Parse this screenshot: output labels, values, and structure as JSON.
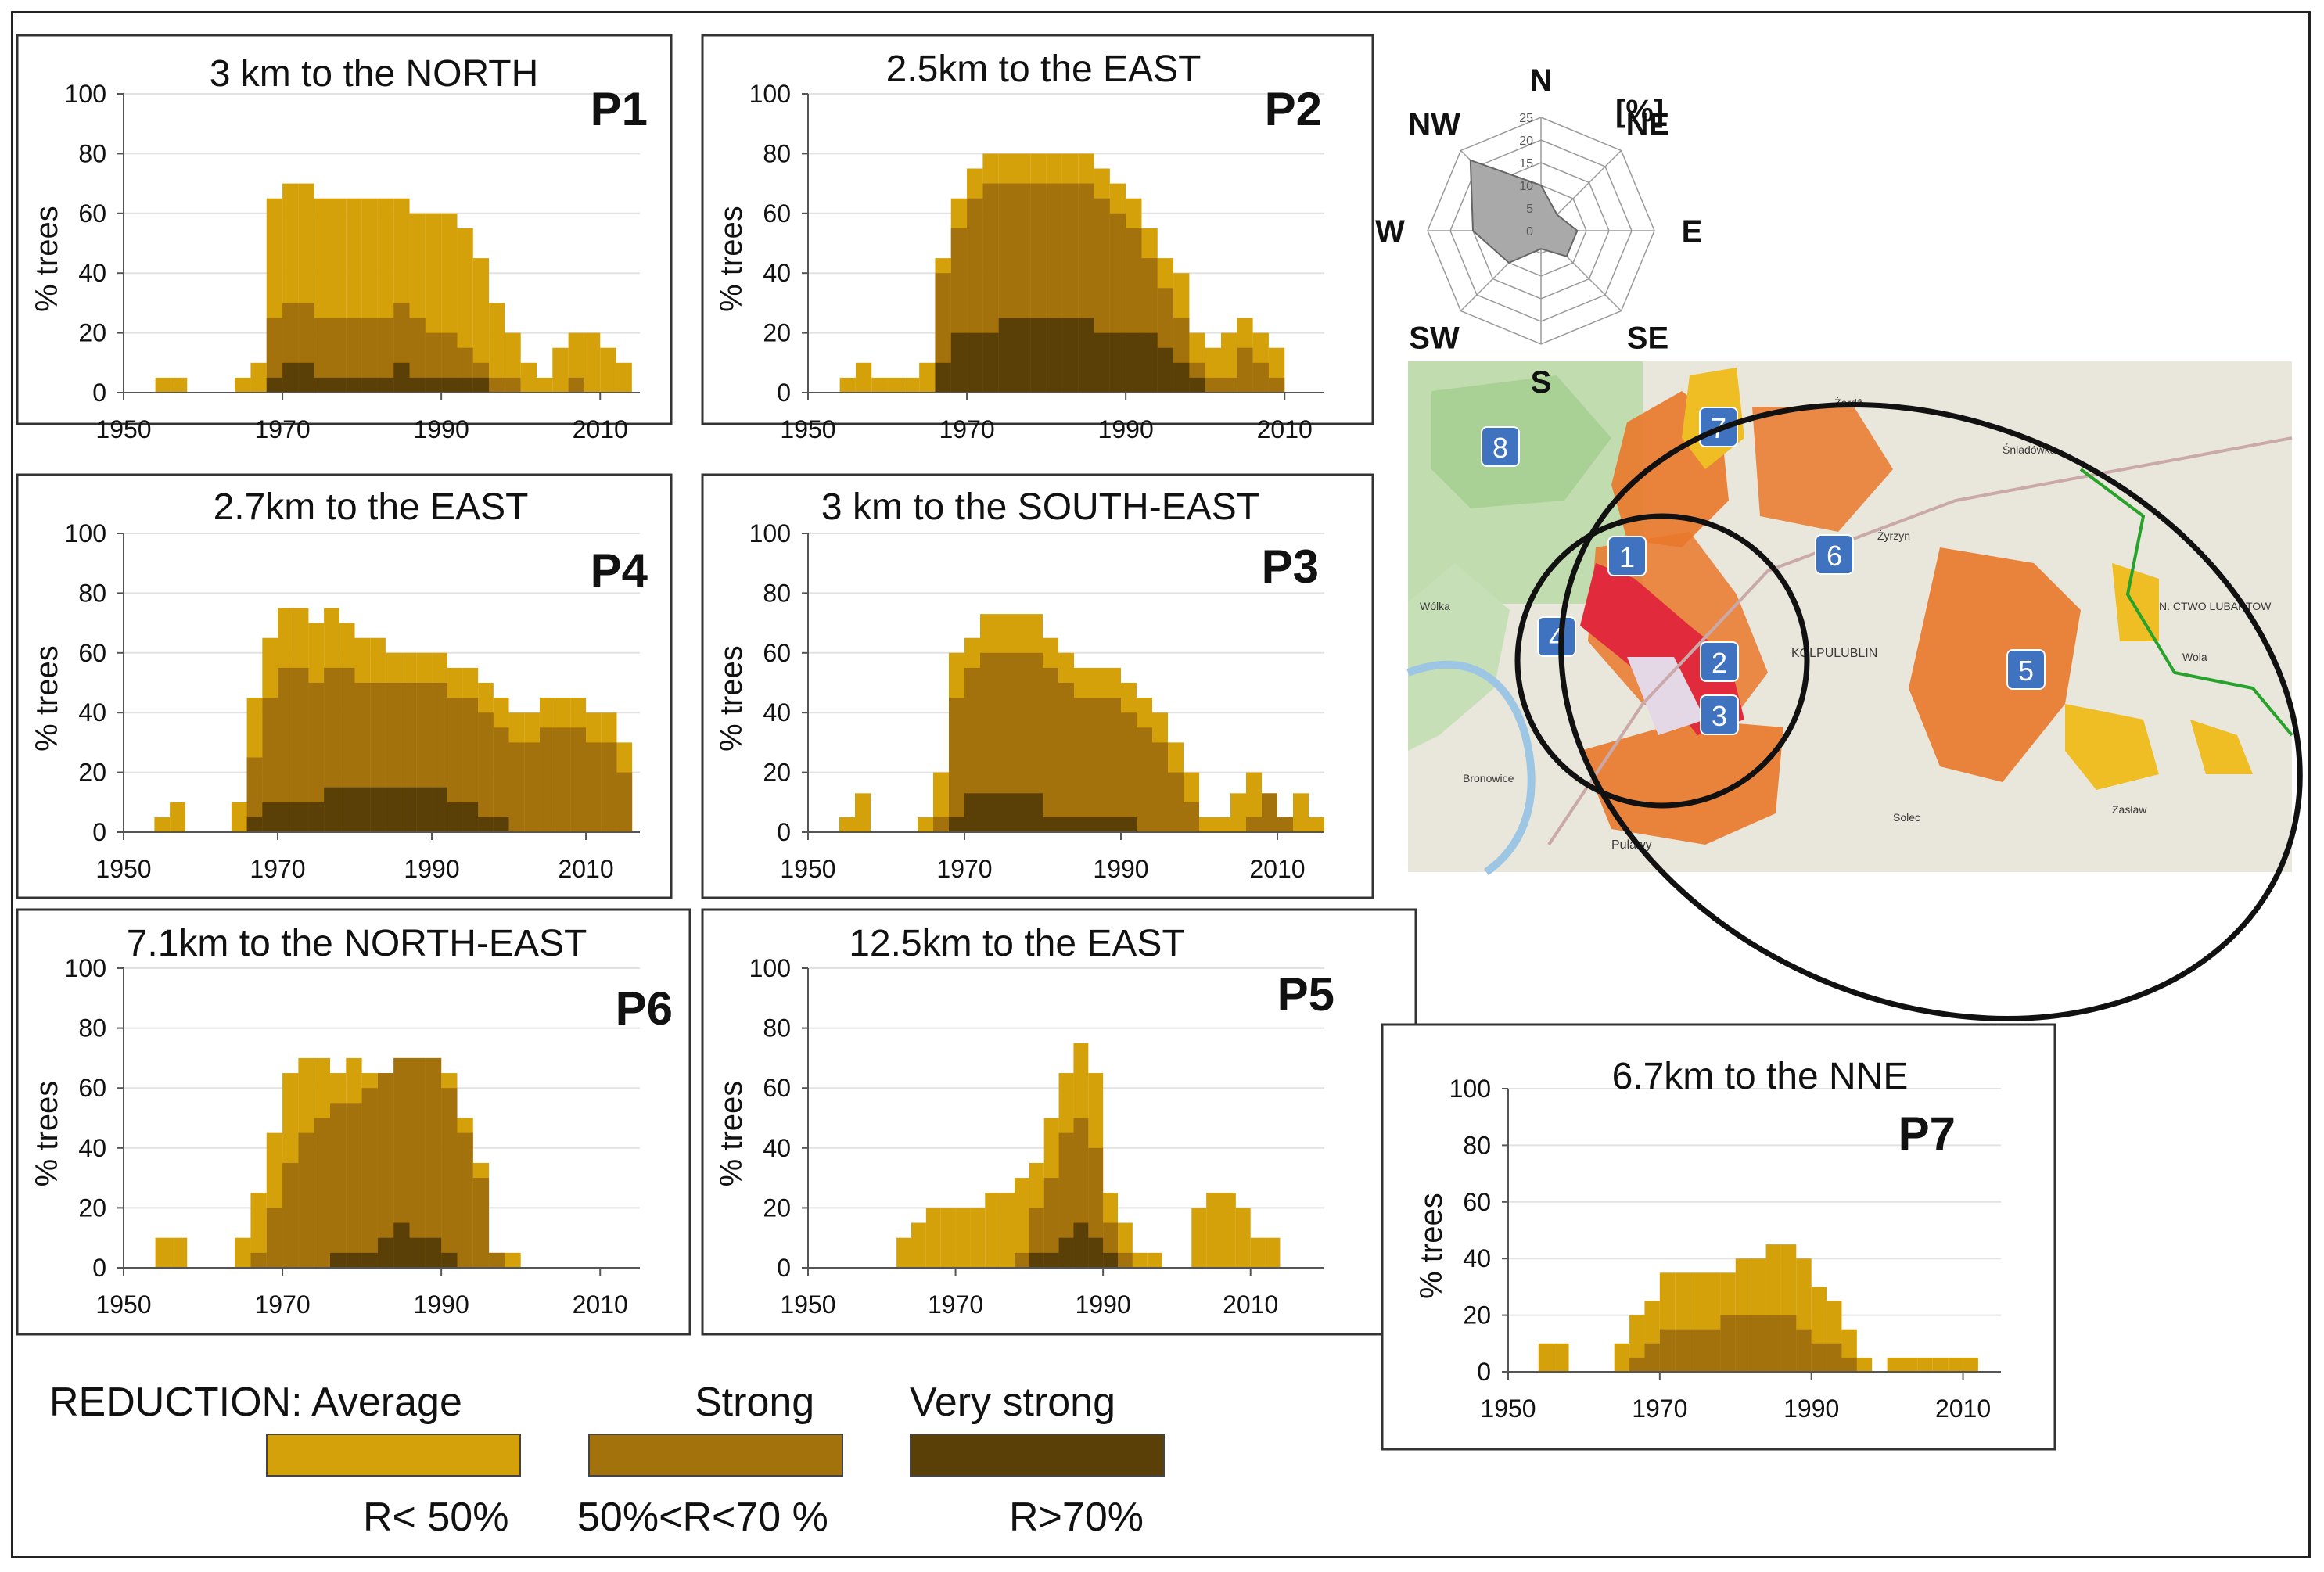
{
  "colors": {
    "average": "#d4a10a",
    "strong": "#a3720c",
    "very_strong": "#5a3f06",
    "map_land": "#e9e6db",
    "map_forest": "#b7d8a6",
    "map_orange": "#e9782a",
    "map_yellow": "#efbd24",
    "map_red": "#e12a3b",
    "map_label": "#3f73c0"
  },
  "y_axis_label": "% trees",
  "chart_data": [
    {
      "id": "P1",
      "type": "bar",
      "title": "3 km to the NORTH",
      "panel_label": "P1",
      "xlabel": "",
      "ylabel": "% trees",
      "xlim": [
        1950,
        2015
      ],
      "ylim": [
        0,
        100
      ],
      "xticks": [
        1950,
        1970,
        1990,
        2010
      ],
      "yticks": [
        0,
        20,
        40,
        60,
        80,
        100
      ],
      "bin_width": 2,
      "bins": [
        1954,
        1956,
        1962,
        1964,
        1966,
        1968,
        1970,
        1972,
        1974,
        1976,
        1978,
        1980,
        1982,
        1984,
        1986,
        1988,
        1990,
        1992,
        1994,
        1996,
        1998,
        2000,
        2002,
        2004,
        2006,
        2008,
        2010,
        2012
      ],
      "series": [
        {
          "name": "Average",
          "values": [
            5,
            5,
            0,
            5,
            10,
            65,
            70,
            70,
            65,
            65,
            65,
            65,
            65,
            65,
            60,
            60,
            60,
            55,
            45,
            30,
            20,
            10,
            5,
            15,
            20,
            20,
            15,
            10
          ]
        },
        {
          "name": "Strong",
          "values": [
            0,
            0,
            0,
            0,
            0,
            25,
            30,
            30,
            25,
            25,
            25,
            25,
            25,
            30,
            25,
            20,
            20,
            15,
            10,
            5,
            5,
            0,
            0,
            0,
            5,
            0,
            0,
            0
          ]
        },
        {
          "name": "Very strong",
          "values": [
            0,
            0,
            0,
            0,
            0,
            5,
            10,
            10,
            5,
            5,
            5,
            5,
            5,
            10,
            5,
            5,
            5,
            5,
            5,
            0,
            0,
            0,
            0,
            0,
            0,
            0,
            0,
            0
          ]
        }
      ]
    },
    {
      "id": "P2",
      "type": "bar",
      "title": "2.5km to the EAST",
      "panel_label": "P2",
      "xlabel": "",
      "ylabel": "% trees",
      "xlim": [
        1950,
        2015
      ],
      "ylim": [
        0,
        100
      ],
      "xticks": [
        1950,
        1970,
        1990,
        2010
      ],
      "yticks": [
        0,
        20,
        40,
        60,
        80,
        100
      ],
      "bin_width": 2,
      "bins": [
        1954,
        1956,
        1958,
        1960,
        1962,
        1964,
        1966,
        1968,
        1970,
        1972,
        1974,
        1976,
        1978,
        1980,
        1982,
        1984,
        1986,
        1988,
        1990,
        1992,
        1994,
        1996,
        1998,
        2000,
        2002,
        2004,
        2006,
        2008
      ],
      "series": [
        {
          "name": "Average",
          "values": [
            5,
            10,
            5,
            5,
            5,
            10,
            45,
            65,
            75,
            80,
            80,
            80,
            80,
            80,
            80,
            80,
            75,
            70,
            65,
            55,
            45,
            40,
            20,
            15,
            20,
            25,
            20,
            15
          ]
        },
        {
          "name": "Strong",
          "values": [
            0,
            0,
            0,
            0,
            0,
            0,
            40,
            55,
            65,
            70,
            70,
            70,
            70,
            70,
            70,
            70,
            65,
            60,
            55,
            45,
            35,
            25,
            10,
            5,
            5,
            15,
            10,
            5
          ]
        },
        {
          "name": "Very strong",
          "values": [
            0,
            0,
            0,
            0,
            0,
            0,
            10,
            20,
            20,
            20,
            25,
            25,
            25,
            25,
            25,
            25,
            20,
            20,
            20,
            20,
            15,
            10,
            5,
            0,
            0,
            0,
            0,
            0
          ]
        }
      ]
    },
    {
      "id": "P4",
      "type": "bar",
      "title": "2.7km to the EAST",
      "panel_label": "P4",
      "xlabel": "",
      "ylabel": "% trees",
      "xlim": [
        1950,
        2017
      ],
      "ylim": [
        0,
        100
      ],
      "xticks": [
        1950,
        1970,
        1990,
        2010
      ],
      "yticks": [
        0,
        20,
        40,
        60,
        80,
        100
      ],
      "bin_width": 2,
      "bins": [
        1954,
        1956,
        1962,
        1964,
        1966,
        1968,
        1970,
        1972,
        1974,
        1976,
        1978,
        1980,
        1982,
        1984,
        1986,
        1988,
        1990,
        1992,
        1994,
        1996,
        1998,
        2000,
        2002,
        2004,
        2006,
        2008,
        2010,
        2012,
        2014
      ],
      "series": [
        {
          "name": "Average",
          "values": [
            5,
            10,
            0,
            10,
            45,
            65,
            75,
            75,
            70,
            75,
            70,
            65,
            65,
            60,
            60,
            60,
            60,
            55,
            55,
            50,
            45,
            40,
            40,
            45,
            45,
            45,
            40,
            40,
            30
          ]
        },
        {
          "name": "Strong",
          "values": [
            0,
            0,
            0,
            0,
            25,
            45,
            55,
            55,
            50,
            55,
            55,
            50,
            50,
            50,
            50,
            50,
            50,
            45,
            45,
            40,
            35,
            30,
            30,
            35,
            35,
            35,
            30,
            30,
            20
          ]
        },
        {
          "name": "Very strong",
          "values": [
            0,
            0,
            0,
            0,
            5,
            10,
            10,
            10,
            10,
            15,
            15,
            15,
            15,
            15,
            15,
            15,
            15,
            10,
            10,
            5,
            5,
            0,
            0,
            0,
            0,
            0,
            0,
            0,
            0
          ]
        }
      ]
    },
    {
      "id": "P3",
      "type": "bar",
      "title": "3 km to the SOUTH-EAST",
      "panel_label": "P3",
      "xlabel": "",
      "ylabel": "% trees",
      "xlim": [
        1950,
        2016
      ],
      "ylim": [
        0,
        100
      ],
      "xticks": [
        1950,
        1970,
        1990,
        2010
      ],
      "yticks": [
        0,
        20,
        40,
        60,
        80,
        100
      ],
      "bin_width": 2,
      "bins": [
        1954,
        1956,
        1962,
        1964,
        1966,
        1968,
        1970,
        1972,
        1974,
        1976,
        1978,
        1980,
        1982,
        1984,
        1986,
        1988,
        1990,
        1992,
        1994,
        1996,
        1998,
        2000,
        2002,
        2004,
        2006,
        2008,
        2010,
        2012,
        2014
      ],
      "series": [
        {
          "name": "Average",
          "values": [
            5,
            13,
            0,
            5,
            20,
            60,
            65,
            73,
            73,
            73,
            73,
            65,
            60,
            55,
            55,
            55,
            50,
            45,
            40,
            30,
            20,
            5,
            5,
            13,
            20,
            13,
            5,
            13,
            5
          ]
        },
        {
          "name": "Strong",
          "values": [
            0,
            0,
            0,
            0,
            5,
            45,
            55,
            60,
            60,
            60,
            60,
            55,
            50,
            45,
            45,
            45,
            40,
            35,
            30,
            20,
            10,
            0,
            0,
            0,
            5,
            13,
            5,
            0,
            0
          ]
        },
        {
          "name": "Very strong",
          "values": [
            0,
            0,
            0,
            0,
            0,
            5,
            13,
            13,
            13,
            13,
            13,
            5,
            5,
            5,
            5,
            5,
            5,
            0,
            0,
            0,
            0,
            0,
            0,
            0,
            0,
            0,
            0,
            0,
            0
          ]
        }
      ]
    },
    {
      "id": "P6",
      "type": "bar",
      "title": "7.1km to the NORTH-EAST",
      "panel_label": "P6",
      "xlabel": "",
      "ylabel": "% trees",
      "xlim": [
        1950,
        2015
      ],
      "ylim": [
        0,
        100
      ],
      "xticks": [
        1950,
        1970,
        1990,
        2010
      ],
      "yticks": [
        0,
        20,
        40,
        60,
        80,
        100
      ],
      "bin_width": 2,
      "bins": [
        1954,
        1956,
        1962,
        1964,
        1966,
        1968,
        1970,
        1972,
        1974,
        1976,
        1978,
        1980,
        1982,
        1984,
        1986,
        1988,
        1990,
        1992,
        1994,
        1996,
        1998
      ],
      "series": [
        {
          "name": "Average",
          "values": [
            10,
            10,
            0,
            10,
            25,
            45,
            65,
            70,
            70,
            65,
            70,
            65,
            65,
            70,
            70,
            70,
            65,
            50,
            35,
            5,
            5
          ]
        },
        {
          "name": "Strong",
          "values": [
            0,
            0,
            0,
            0,
            5,
            20,
            35,
            45,
            50,
            55,
            55,
            60,
            65,
            70,
            70,
            70,
            60,
            45,
            30,
            5,
            0
          ]
        },
        {
          "name": "Very strong",
          "values": [
            0,
            0,
            0,
            0,
            0,
            0,
            0,
            0,
            0,
            5,
            5,
            5,
            10,
            15,
            10,
            10,
            5,
            0,
            0,
            0,
            0
          ]
        }
      ]
    },
    {
      "id": "P5",
      "type": "bar",
      "title": "12.5km to the EAST",
      "panel_label": "P5",
      "xlabel": "",
      "ylabel": "% trees",
      "xlim": [
        1950,
        2020
      ],
      "ylim": [
        0,
        100
      ],
      "xticks": [
        1950,
        1970,
        1990,
        2010
      ],
      "yticks": [
        0,
        20,
        40,
        60,
        80,
        100
      ],
      "bin_width": 2,
      "bins": [
        1962,
        1964,
        1966,
        1968,
        1970,
        1972,
        1974,
        1976,
        1978,
        1980,
        1982,
        1984,
        1986,
        1988,
        1990,
        1992,
        1994,
        1996,
        1998,
        2000,
        2002,
        2004,
        2006,
        2008,
        2010,
        2012
      ],
      "series": [
        {
          "name": "Average",
          "values": [
            10,
            15,
            20,
            20,
            20,
            20,
            25,
            25,
            30,
            35,
            50,
            65,
            75,
            65,
            25,
            15,
            5,
            5,
            0,
            0,
            20,
            25,
            25,
            20,
            10,
            10
          ]
        },
        {
          "name": "Strong",
          "values": [
            0,
            0,
            0,
            0,
            0,
            0,
            0,
            0,
            5,
            20,
            30,
            45,
            50,
            40,
            15,
            5,
            0,
            0,
            0,
            0,
            0,
            0,
            0,
            0,
            0,
            0
          ]
        },
        {
          "name": "Very strong",
          "values": [
            0,
            0,
            0,
            0,
            0,
            0,
            0,
            0,
            0,
            5,
            5,
            10,
            15,
            10,
            5,
            0,
            0,
            0,
            0,
            0,
            0,
            0,
            0,
            0,
            0,
            0
          ]
        }
      ]
    },
    {
      "id": "P7",
      "type": "bar",
      "title": "6.7km to the NNE",
      "panel_label": "P7",
      "xlabel": "",
      "ylabel": "% trees",
      "xlim": [
        1950,
        2015
      ],
      "ylim": [
        0,
        100
      ],
      "xticks": [
        1950,
        1970,
        1990,
        2010
      ],
      "yticks": [
        0,
        20,
        40,
        60,
        80,
        100
      ],
      "bin_width": 2,
      "bins": [
        1954,
        1956,
        1962,
        1964,
        1966,
        1968,
        1970,
        1972,
        1974,
        1976,
        1978,
        1980,
        1982,
        1984,
        1986,
        1988,
        1990,
        1992,
        1994,
        1996,
        1998,
        2000,
        2002,
        2004,
        2006,
        2008,
        2010
      ],
      "series": [
        {
          "name": "Average",
          "values": [
            10,
            10,
            0,
            10,
            20,
            25,
            35,
            35,
            35,
            35,
            35,
            40,
            40,
            45,
            45,
            40,
            30,
            25,
            15,
            5,
            0,
            5,
            5,
            5,
            5,
            5,
            5
          ]
        },
        {
          "name": "Strong",
          "values": [
            0,
            0,
            0,
            0,
            5,
            10,
            15,
            15,
            15,
            15,
            20,
            20,
            20,
            20,
            20,
            15,
            10,
            10,
            5,
            0,
            0,
            0,
            0,
            0,
            0,
            0,
            0
          ]
        },
        {
          "name": "Very strong",
          "values": [
            0,
            0,
            0,
            0,
            0,
            0,
            0,
            0,
            0,
            0,
            0,
            0,
            0,
            0,
            0,
            0,
            0,
            0,
            0,
            0,
            0,
            0,
            0,
            0,
            0,
            0,
            0
          ]
        }
      ]
    },
    {
      "id": "wind-rose",
      "type": "radar",
      "unit_label": "[%]",
      "directions": [
        "N",
        "NE",
        "E",
        "SE",
        "S",
        "SW",
        "W",
        "NW"
      ],
      "values": [
        10,
        5,
        8,
        8,
        4,
        10,
        15,
        22
      ],
      "rlim": [
        0,
        25
      ],
      "rticks": [
        0,
        5,
        10,
        15,
        20,
        25
      ]
    }
  ],
  "legend": {
    "title": "REDUCTION: Average",
    "strong": "Strong",
    "very_strong": "Very strong",
    "range_average": "R< 50%",
    "range_strong": "50%<R<70 %",
    "range_very_strong": "R>70%"
  },
  "map": {
    "labels": [
      "1",
      "2",
      "3",
      "4",
      "5",
      "6",
      "7",
      "8"
    ],
    "place_names": [
      "KOLPULUBLIN",
      "Żerdź",
      "Żyrzyn",
      "Śniadówka",
      "Bronowice",
      "Puławy",
      "N. CTWO LUBARTOW",
      "Wola",
      "Solec",
      "Zasław",
      "Wólka"
    ]
  }
}
